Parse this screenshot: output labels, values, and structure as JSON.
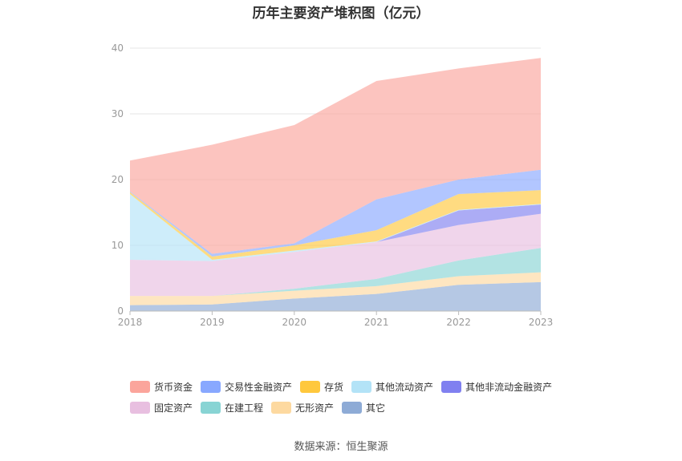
{
  "chart_data": {
    "type": "area",
    "title": "历年主要资产堆积图（亿元）",
    "stacked": true,
    "x": [
      "2018",
      "2019",
      "2020",
      "2021",
      "2022",
      "2023"
    ],
    "ylim": [
      0,
      40
    ],
    "yticks": [
      0,
      10,
      20,
      30,
      40
    ],
    "grid": true,
    "legend_position": "bottom",
    "series": [
      {
        "name": "其它",
        "color": "#8eabd6",
        "values": [
          0.9,
          1.0,
          1.9,
          2.6,
          4.0,
          4.4
        ]
      },
      {
        "name": "无形资产",
        "color": "#fdd9a0",
        "values": [
          1.4,
          1.3,
          1.2,
          1.2,
          1.3,
          1.5
        ]
      },
      {
        "name": "在建工程",
        "color": "#88d4d4",
        "values": [
          0.0,
          0.0,
          0.3,
          1.1,
          2.4,
          3.7
        ]
      },
      {
        "name": "固定资产",
        "color": "#e8bfe0",
        "values": [
          5.5,
          5.3,
          5.6,
          5.6,
          5.4,
          5.2
        ]
      },
      {
        "name": "其他非流动金融资产",
        "color": "#8080f0",
        "values": [
          0.0,
          0.0,
          0.0,
          0.0,
          2.2,
          1.4
        ]
      },
      {
        "name": "其他流动资产",
        "color": "#b3e3f7",
        "values": [
          10.0,
          0.2,
          0.2,
          0.1,
          0.1,
          0.1
        ]
      },
      {
        "name": "存货",
        "color": "#ffc83d",
        "values": [
          0.3,
          0.5,
          0.8,
          1.7,
          2.4,
          2.1
        ]
      },
      {
        "name": "交易性金融资产",
        "color": "#88a8ff",
        "values": [
          0.1,
          0.4,
          0.3,
          4.7,
          2.2,
          3.1
        ]
      },
      {
        "name": "货币资金",
        "color": "#fba59c",
        "values": [
          4.7,
          16.6,
          18.0,
          18.0,
          16.9,
          17.0
        ]
      }
    ],
    "legend_rows": [
      [
        "货币资金",
        "交易性金融资产",
        "存货",
        "其他流动资产",
        "其他非流动金融资产"
      ],
      [
        "固定资产",
        "在建工程",
        "无形资产",
        "其它"
      ]
    ]
  },
  "source": "数据来源：恒生聚源"
}
